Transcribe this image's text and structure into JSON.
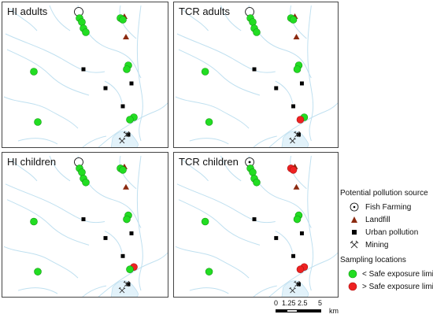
{
  "panels": [
    {
      "title": "HI adults",
      "red_sites": [],
      "fish_marker": {
        "fill": "#ffffff"
      }
    },
    {
      "title": "TCR adults",
      "red_sites": [
        [
          3,
          1
        ]
      ],
      "fish_marker": {
        "fill": "#ffffff"
      }
    },
    {
      "title": "HI children",
      "red_sites": [
        [
          3,
          0
        ]
      ],
      "fish_marker": {
        "fill": "#ffffff"
      }
    },
    {
      "title": "TCR children",
      "red_sites": [
        [
          2,
          0
        ],
        [
          2,
          1
        ],
        [
          3,
          0
        ],
        [
          3,
          1
        ]
      ],
      "fish_marker": {
        "fill": "#111111"
      }
    }
  ],
  "legend": {
    "pollution_heading": "Potential pollution source",
    "pollution_items": [
      {
        "icon": "fish-farming-icon",
        "label": "Fish Farming"
      },
      {
        "icon": "landfill-icon",
        "label": "Landfill"
      },
      {
        "icon": "urban-pollution-icon",
        "label": "Urban pollution"
      },
      {
        "icon": "mining-icon",
        "label": "Mining"
      }
    ],
    "sampling_heading": "Sampling locations",
    "sampling_items": [
      {
        "label": "< Safe exposure limit",
        "color": "#22dd22"
      },
      {
        "label": "> Safe exposure limit",
        "color": "#ee2222"
      }
    ]
  },
  "scale_bar": {
    "ticks": [
      "0",
      "1.25",
      "2.5",
      "5"
    ],
    "unit": "km"
  },
  "colors": {
    "river": "#bfe0f0",
    "safe": "#22dd22",
    "unsafe": "#ee2222",
    "landfill": "#8b2a10",
    "urban": "#000000"
  }
}
